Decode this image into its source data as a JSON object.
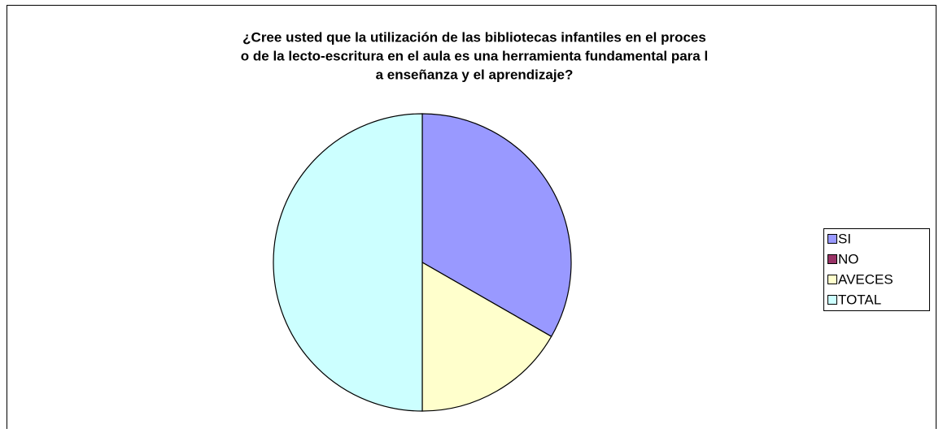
{
  "chart_data": {
    "type": "pie",
    "title": [
      "¿Cree usted que la utilización de las bibliotecas infantiles en el proces",
      "o de la lecto-escritura en el aula es una herramienta fundamental para l",
      "a enseñanza y el aprendizaje?"
    ],
    "categories": [
      "SI",
      "NO",
      "AVECES",
      "TOTAL"
    ],
    "values": [
      33.3,
      0,
      16.7,
      50
    ],
    "colors": [
      "#9999ff",
      "#993366",
      "#ffffcc",
      "#ccffff"
    ],
    "legend": "right"
  }
}
